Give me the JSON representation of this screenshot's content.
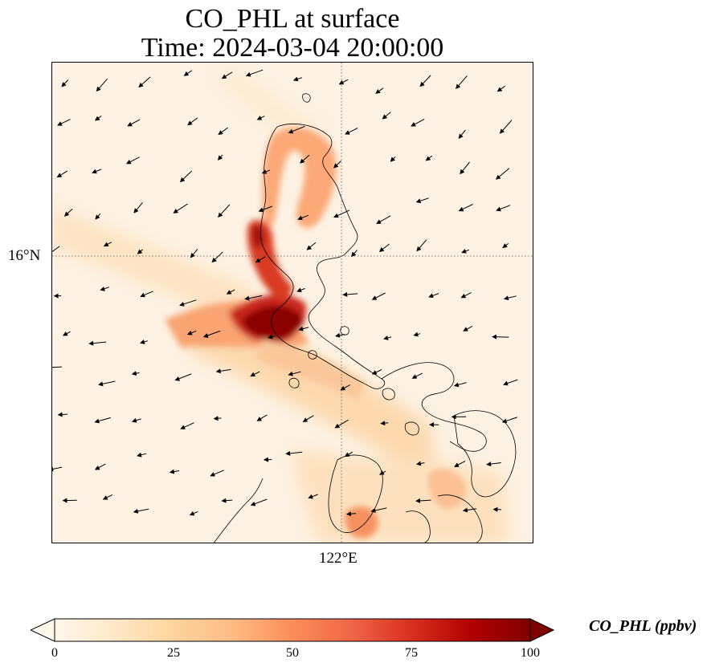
{
  "title": {
    "line1": "CO_PHL at surface",
    "line2": "Time: 2024-03-04 20:00:00"
  },
  "map": {
    "lat_gridline_label": "16°N",
    "lon_gridline_label": "122°E",
    "field": "CO_PHL",
    "units": "ppbv",
    "colormap": "OrRd",
    "coastline_color": "#000000",
    "gridline_style": "dotted",
    "wind_vectors": true
  },
  "colorbar": {
    "label": "CO_PHL (ppbv)",
    "min": 0,
    "max": 100,
    "ticks": [
      "0",
      "25",
      "50",
      "75",
      "100"
    ],
    "extend": "both",
    "colors": [
      "#fff7ec",
      "#fee8c8",
      "#fdd49e",
      "#fdbb84",
      "#fc8d59",
      "#ef6548",
      "#d7301f",
      "#b30000",
      "#7f0000"
    ]
  }
}
